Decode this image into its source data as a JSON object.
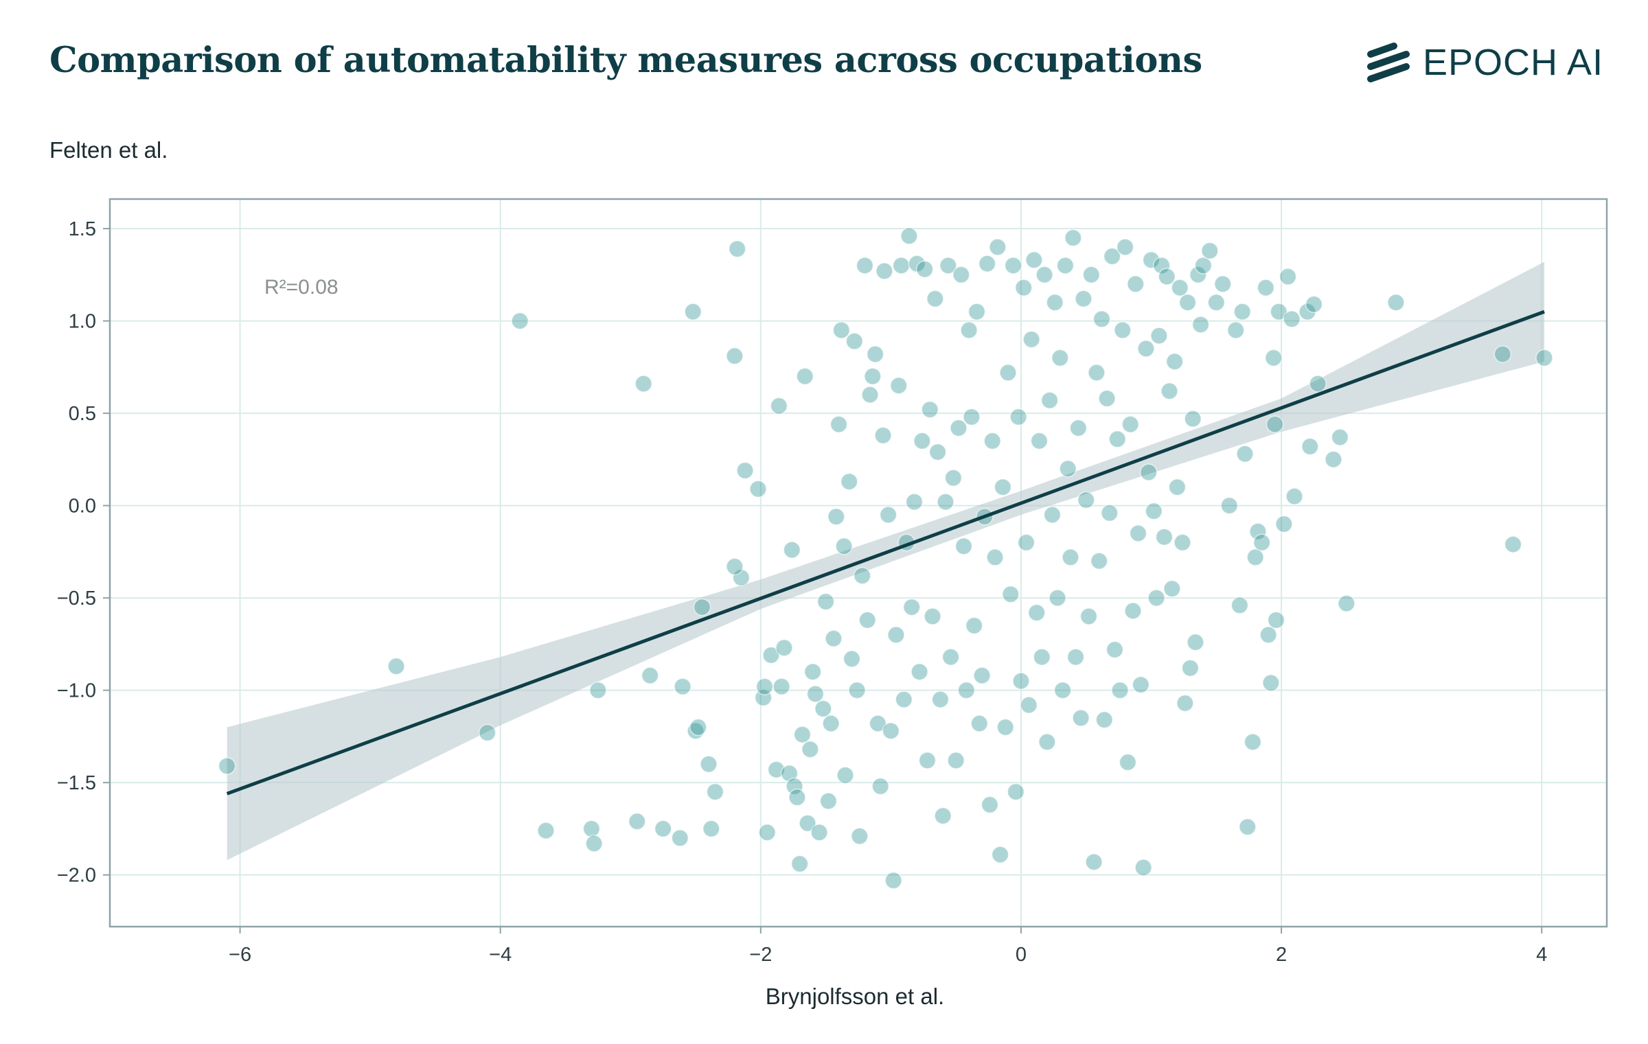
{
  "title": "Comparison of automatability measures across occupations",
  "brand": {
    "name": "EPOCH AI",
    "icon": "epoch-logo-icon",
    "color": "#0f3e47"
  },
  "chart_data": {
    "type": "scatter",
    "xlabel": "Brynjolfsson et al.",
    "ylabel": "Felten et al.",
    "xlim": [
      -7,
      4.5
    ],
    "ylim": [
      -2.28,
      1.66
    ],
    "xticks": [
      -6,
      -4,
      -2,
      0,
      2,
      4
    ],
    "yticks": [
      1.5,
      1.0,
      0.5,
      0.0,
      -0.5,
      -1.0,
      -1.5,
      -2.0
    ],
    "xtick_labels": [
      "−6",
      "−4",
      "−2",
      "0",
      "2",
      "4"
    ],
    "ytick_labels": [
      "1.5",
      "1.0",
      "0.5",
      "0.0",
      "−0.5",
      "−1.0",
      "−1.5",
      "−2.0"
    ],
    "grid": true,
    "annotation": "R²=0.08",
    "colors": {
      "points": "#2a9090",
      "fit_line": "#0f3e47",
      "band": "#b5c6ca",
      "grid": "#d9ebe9",
      "frame": "#8fa3a8"
    },
    "fit_line": {
      "x": [
        -6.1,
        4.02
      ],
      "y": [
        -1.56,
        1.05
      ]
    },
    "confidence_band": {
      "x": [
        -6.1,
        -4,
        -2,
        0,
        2,
        4.02
      ],
      "upper": [
        -1.2,
        -0.82,
        -0.4,
        0.08,
        0.58,
        1.32
      ],
      "lower": [
        -1.92,
        -1.19,
        -0.56,
        -0.05,
        0.4,
        0.78
      ]
    },
    "points": [
      [
        -6.1,
        -1.41
      ],
      [
        -4.8,
        -0.87
      ],
      [
        -4.1,
        -1.23
      ],
      [
        -3.85,
        1.0
      ],
      [
        -3.65,
        -1.76
      ],
      [
        -3.3,
        -1.75
      ],
      [
        -3.28,
        -1.83
      ],
      [
        -3.25,
        -1.0
      ],
      [
        -2.95,
        -1.71
      ],
      [
        -2.9,
        0.66
      ],
      [
        -2.85,
        -0.92
      ],
      [
        -2.75,
        -1.75
      ],
      [
        -2.62,
        -1.8
      ],
      [
        -2.6,
        -0.98
      ],
      [
        -2.52,
        1.05
      ],
      [
        -2.5,
        -1.22
      ],
      [
        -2.48,
        -1.2
      ],
      [
        -2.45,
        -0.55
      ],
      [
        -2.4,
        -1.4
      ],
      [
        -2.38,
        -1.75
      ],
      [
        -2.35,
        -1.55
      ],
      [
        -2.2,
        0.81
      ],
      [
        -2.18,
        1.39
      ],
      [
        -2.15,
        -0.39
      ],
      [
        -2.12,
        0.19
      ],
      [
        -2.2,
        -0.33
      ],
      [
        -2.02,
        0.09
      ],
      [
        -1.98,
        -1.04
      ],
      [
        -1.97,
        -0.98
      ],
      [
        -1.95,
        -1.77
      ],
      [
        -1.92,
        -0.81
      ],
      [
        -1.88,
        -1.43
      ],
      [
        -1.86,
        0.54
      ],
      [
        -1.84,
        -0.98
      ],
      [
        -1.82,
        -0.77
      ],
      [
        -1.78,
        -1.45
      ],
      [
        -1.76,
        -0.24
      ],
      [
        -1.74,
        -1.52
      ],
      [
        -1.72,
        -1.58
      ],
      [
        -1.7,
        -1.94
      ],
      [
        -1.68,
        -1.24
      ],
      [
        -1.66,
        0.7
      ],
      [
        -1.64,
        -1.72
      ],
      [
        -1.62,
        -1.32
      ],
      [
        -1.6,
        -0.9
      ],
      [
        -1.58,
        -1.02
      ],
      [
        -1.55,
        -1.77
      ],
      [
        -1.52,
        -1.1
      ],
      [
        -1.5,
        -0.52
      ],
      [
        -1.48,
        -1.6
      ],
      [
        -1.46,
        -1.18
      ],
      [
        -1.44,
        -0.72
      ],
      [
        -1.42,
        -0.06
      ],
      [
        -1.4,
        0.44
      ],
      [
        -1.38,
        0.95
      ],
      [
        -1.36,
        -0.22
      ],
      [
        -1.35,
        -1.46
      ],
      [
        -1.32,
        0.13
      ],
      [
        -1.3,
        -0.83
      ],
      [
        -1.28,
        0.89
      ],
      [
        -1.26,
        -1.0
      ],
      [
        -1.24,
        -1.79
      ],
      [
        -1.22,
        -0.38
      ],
      [
        -1.2,
        1.3
      ],
      [
        -1.18,
        -0.62
      ],
      [
        -1.16,
        0.6
      ],
      [
        -1.14,
        0.7
      ],
      [
        -1.12,
        0.82
      ],
      [
        -1.1,
        -1.18
      ],
      [
        -1.08,
        -1.52
      ],
      [
        -1.06,
        0.38
      ],
      [
        -1.05,
        1.27
      ],
      [
        -1.02,
        -0.05
      ],
      [
        -1.0,
        -1.22
      ],
      [
        -0.98,
        -2.03
      ],
      [
        -0.96,
        -0.7
      ],
      [
        -0.94,
        0.65
      ],
      [
        -0.92,
        1.3
      ],
      [
        -0.9,
        -1.05
      ],
      [
        -0.88,
        -0.2
      ],
      [
        -0.86,
        1.46
      ],
      [
        -0.84,
        -0.55
      ],
      [
        -0.82,
        0.02
      ],
      [
        -0.8,
        1.31
      ],
      [
        -0.78,
        -0.9
      ],
      [
        -0.76,
        0.35
      ],
      [
        -0.74,
        1.28
      ],
      [
        -0.72,
        -1.38
      ],
      [
        -0.7,
        0.52
      ],
      [
        -0.68,
        -0.6
      ],
      [
        -0.66,
        1.12
      ],
      [
        -0.64,
        0.29
      ],
      [
        -0.62,
        -1.05
      ],
      [
        -0.6,
        -1.68
      ],
      [
        -0.58,
        0.02
      ],
      [
        -0.56,
        1.3
      ],
      [
        -0.54,
        -0.82
      ],
      [
        -0.52,
        0.15
      ],
      [
        -0.5,
        -1.38
      ],
      [
        -0.48,
        0.42
      ],
      [
        -0.46,
        1.25
      ],
      [
        -0.44,
        -0.22
      ],
      [
        -0.42,
        -1.0
      ],
      [
        -0.4,
        0.95
      ],
      [
        -0.38,
        0.48
      ],
      [
        -0.36,
        -0.65
      ],
      [
        -0.34,
        1.05
      ],
      [
        -0.32,
        -1.18
      ],
      [
        -0.3,
        -0.92
      ],
      [
        -0.28,
        -0.06
      ],
      [
        -0.26,
        1.31
      ],
      [
        -0.24,
        -1.62
      ],
      [
        -0.22,
        0.35
      ],
      [
        -0.2,
        -0.28
      ],
      [
        -0.18,
        1.4
      ],
      [
        -0.16,
        -1.89
      ],
      [
        -0.14,
        0.1
      ],
      [
        -0.12,
        -1.2
      ],
      [
        -0.1,
        0.72
      ],
      [
        -0.08,
        -0.48
      ],
      [
        -0.06,
        1.3
      ],
      [
        -0.04,
        -1.55
      ],
      [
        -0.02,
        0.48
      ],
      [
        0.0,
        -0.95
      ],
      [
        0.02,
        1.18
      ],
      [
        0.04,
        -0.2
      ],
      [
        0.06,
        -1.08
      ],
      [
        0.08,
        0.9
      ],
      [
        0.1,
        1.33
      ],
      [
        0.12,
        -0.58
      ],
      [
        0.14,
        0.35
      ],
      [
        0.16,
        -0.82
      ],
      [
        0.18,
        1.25
      ],
      [
        0.2,
        -1.28
      ],
      [
        0.22,
        0.57
      ],
      [
        0.24,
        -0.05
      ],
      [
        0.26,
        1.1
      ],
      [
        0.28,
        -0.5
      ],
      [
        0.3,
        0.8
      ],
      [
        0.32,
        -1.0
      ],
      [
        0.34,
        1.3
      ],
      [
        0.36,
        0.2
      ],
      [
        0.38,
        -0.28
      ],
      [
        0.4,
        1.45
      ],
      [
        0.42,
        -0.82
      ],
      [
        0.44,
        0.42
      ],
      [
        0.46,
        -1.15
      ],
      [
        0.48,
        1.12
      ],
      [
        0.5,
        0.03
      ],
      [
        0.52,
        -0.6
      ],
      [
        0.54,
        1.25
      ],
      [
        0.56,
        -1.93
      ],
      [
        0.58,
        0.72
      ],
      [
        0.6,
        -0.3
      ],
      [
        0.62,
        1.01
      ],
      [
        0.64,
        -1.16
      ],
      [
        0.66,
        0.58
      ],
      [
        0.68,
        -0.04
      ],
      [
        0.7,
        1.35
      ],
      [
        0.72,
        -0.78
      ],
      [
        0.74,
        0.36
      ],
      [
        0.76,
        -1.0
      ],
      [
        0.78,
        0.95
      ],
      [
        0.8,
        1.4
      ],
      [
        0.82,
        -1.39
      ],
      [
        0.84,
        0.44
      ],
      [
        0.86,
        -0.57
      ],
      [
        0.88,
        1.2
      ],
      [
        0.9,
        -0.15
      ],
      [
        0.92,
        -0.97
      ],
      [
        0.94,
        -1.96
      ],
      [
        0.96,
        0.85
      ],
      [
        0.98,
        0.18
      ],
      [
        1.0,
        1.33
      ],
      [
        1.02,
        -0.03
      ],
      [
        1.04,
        -0.5
      ],
      [
        1.06,
        0.92
      ],
      [
        1.08,
        1.3
      ],
      [
        1.1,
        -0.17
      ],
      [
        1.12,
        1.24
      ],
      [
        1.14,
        0.62
      ],
      [
        1.16,
        -0.45
      ],
      [
        1.18,
        0.78
      ],
      [
        1.2,
        0.1
      ],
      [
        1.22,
        1.18
      ],
      [
        1.24,
        -0.2
      ],
      [
        1.26,
        -1.07
      ],
      [
        1.28,
        1.1
      ],
      [
        1.3,
        -0.88
      ],
      [
        1.32,
        0.47
      ],
      [
        1.34,
        -0.74
      ],
      [
        1.36,
        1.25
      ],
      [
        1.38,
        0.98
      ],
      [
        1.4,
        1.3
      ],
      [
        1.45,
        1.38
      ],
      [
        1.5,
        1.1
      ],
      [
        1.55,
        1.2
      ],
      [
        1.6,
        0.0
      ],
      [
        1.65,
        0.95
      ],
      [
        1.68,
        -0.54
      ],
      [
        1.7,
        1.05
      ],
      [
        1.72,
        0.28
      ],
      [
        1.74,
        -1.74
      ],
      [
        1.78,
        -1.28
      ],
      [
        1.8,
        -0.28
      ],
      [
        1.82,
        -0.14
      ],
      [
        1.85,
        -0.2
      ],
      [
        1.88,
        1.18
      ],
      [
        1.9,
        -0.7
      ],
      [
        1.92,
        -0.96
      ],
      [
        1.94,
        0.8
      ],
      [
        1.95,
        0.44
      ],
      [
        1.96,
        -0.62
      ],
      [
        1.98,
        1.05
      ],
      [
        2.02,
        -0.1
      ],
      [
        2.05,
        1.24
      ],
      [
        2.08,
        1.01
      ],
      [
        2.1,
        0.05
      ],
      [
        2.2,
        1.05
      ],
      [
        2.22,
        0.32
      ],
      [
        2.25,
        1.09
      ],
      [
        2.28,
        0.66
      ],
      [
        2.4,
        0.25
      ],
      [
        2.45,
        0.37
      ],
      [
        2.5,
        -0.53
      ],
      [
        2.88,
        1.1
      ],
      [
        3.7,
        0.82
      ],
      [
        3.78,
        -0.21
      ],
      [
        4.02,
        0.8
      ]
    ]
  }
}
